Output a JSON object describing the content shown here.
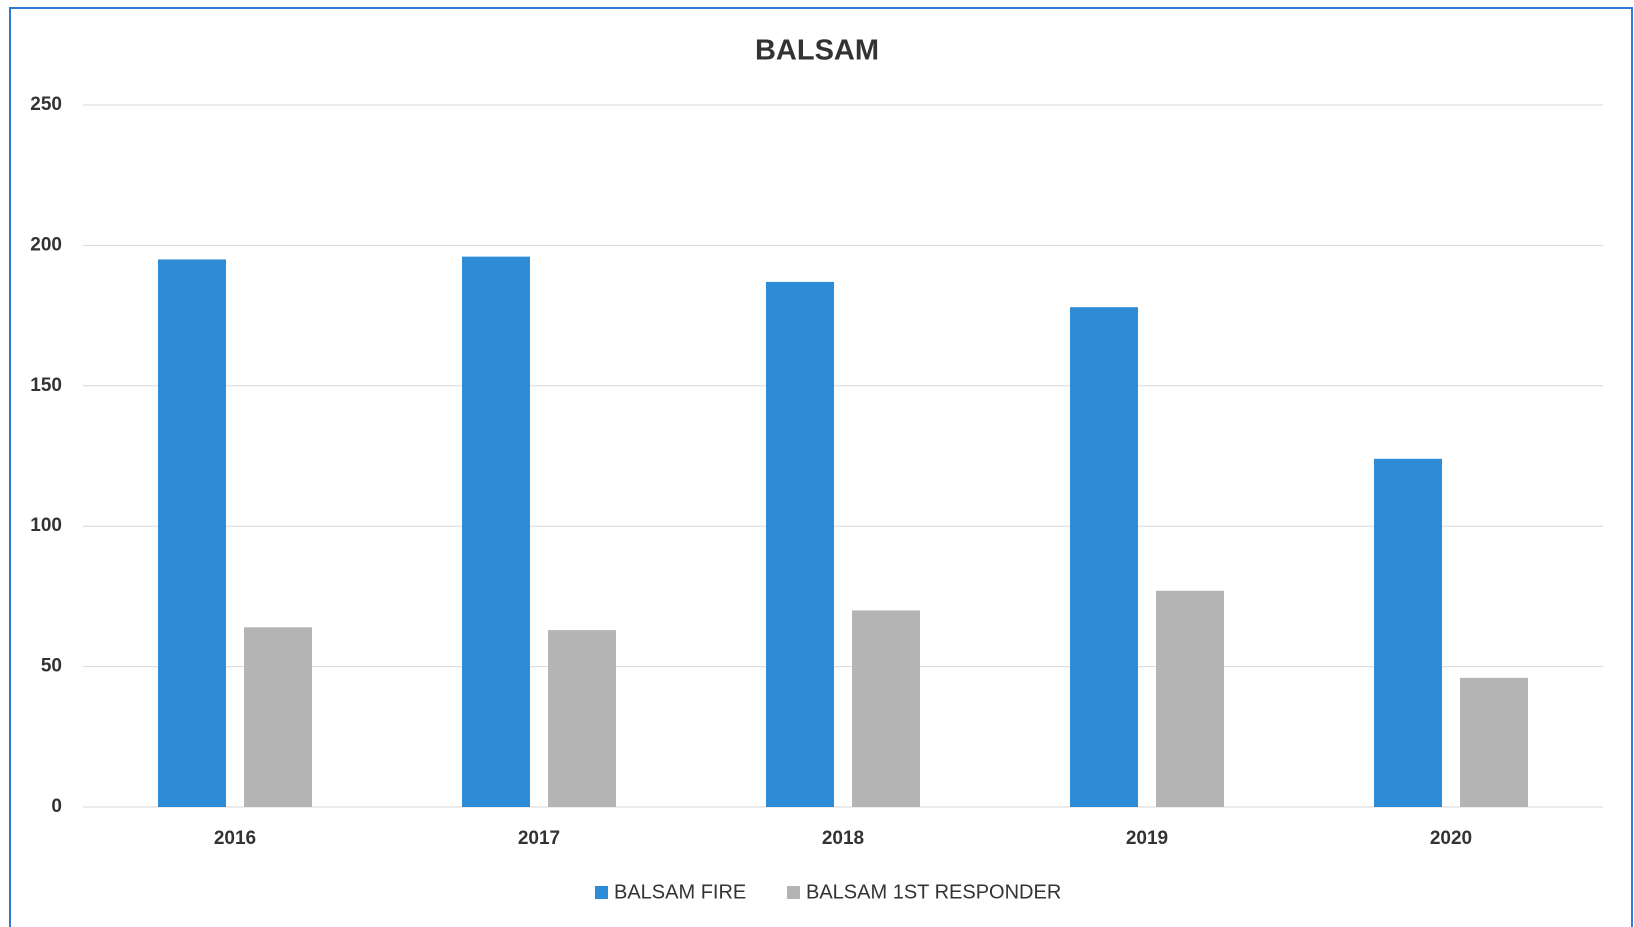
{
  "chart_data": {
    "type": "bar",
    "title": "BALSAM",
    "categories": [
      "2016",
      "2017",
      "2018",
      "2019",
      "2020"
    ],
    "series": [
      {
        "name": "BALSAM FIRE",
        "color": "#2e8bd6",
        "values": [
          195,
          196,
          187,
          178,
          124
        ]
      },
      {
        "name": "BALSAM 1ST RESPONDER",
        "color": "#b4b4b4",
        "values": [
          64,
          63,
          70,
          77,
          46
        ]
      }
    ],
    "ylim": [
      0,
      250
    ],
    "yticks": [
      0,
      50,
      100,
      150,
      200,
      250
    ],
    "grid": true,
    "legend": "bottom"
  }
}
